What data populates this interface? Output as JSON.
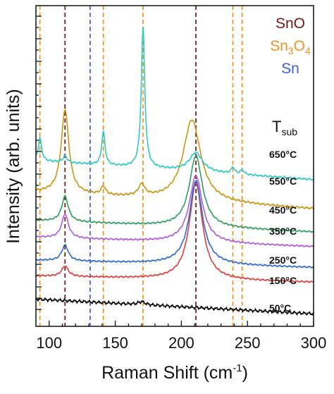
{
  "chart_data": {
    "type": "line",
    "xlabel": "Raman Shift (cm",
    "xlabel_sup": "-1",
    "xlabel_close": ")",
    "ylabel": "Intensity (arb. units)",
    "xlim": [
      90,
      300
    ],
    "xticks": [
      100,
      150,
      200,
      250,
      300
    ],
    "y_ticks_labeled": false,
    "legend_placement": "top-right",
    "legend": [
      {
        "id": "sno",
        "parts": [
          {
            "t": "SnO",
            "sub": false
          }
        ],
        "color": "#7a1414"
      },
      {
        "id": "sn3o4",
        "parts": [
          {
            "t": "Sn",
            "sub": false
          },
          {
            "t": "3",
            "sub": true
          },
          {
            "t": "O",
            "sub": false
          },
          {
            "t": "4",
            "sub": true
          }
        ],
        "color": "#f0921e"
      },
      {
        "id": "sn",
        "parts": [
          {
            "t": "Sn",
            "sub": false
          }
        ],
        "color": "#3b5fe0"
      }
    ],
    "tsub_label": {
      "main": "T",
      "sub": "sub"
    },
    "reference_lines": [
      {
        "x": 93,
        "phase": "sn3o4",
        "color": "#f0921e"
      },
      {
        "x": 112,
        "phase": "sno",
        "color": "#7a1414"
      },
      {
        "x": 131,
        "phase": "sn",
        "color": "#3b5fe0"
      },
      {
        "x": 141,
        "phase": "sn3o4",
        "color": "#f0921e"
      },
      {
        "x": 171,
        "phase": "sn3o4",
        "color": "#f0921e"
      },
      {
        "x": 211,
        "phase": "sno",
        "color": "#7a1414"
      },
      {
        "x": 239,
        "phase": "sn3o4",
        "color": "#f0921e"
      },
      {
        "x": 246,
        "phase": "sn3o4",
        "color": "#f0921e"
      }
    ],
    "series": [
      {
        "name": "50°C",
        "color": "#000000",
        "baseline": 0.7,
        "slope": -0.7,
        "noise": 0.08,
        "peaks": [
          {
            "c": 170,
            "h": 0.15,
            "w": 3
          }
        ]
      },
      {
        "name": "150°C",
        "color": "#e03c3c",
        "baseline": 1.8,
        "slope": -0.3,
        "noise": 0.04,
        "peaks": [
          {
            "c": 112,
            "h": 0.5,
            "w": 3
          },
          {
            "c": 211,
            "h": 4.6,
            "w": 6
          }
        ]
      },
      {
        "name": "250°C",
        "color": "#2f6ad0",
        "baseline": 2.55,
        "slope": -0.35,
        "noise": 0.04,
        "peaks": [
          {
            "c": 112,
            "h": 0.75,
            "w": 3
          },
          {
            "c": 211,
            "h": 4.0,
            "w": 6
          }
        ]
      },
      {
        "name": "350°C",
        "color": "#b05cd8",
        "baseline": 3.65,
        "slope": -0.45,
        "noise": 0.04,
        "peaks": [
          {
            "c": 112,
            "h": 1.15,
            "w": 3
          },
          {
            "c": 211,
            "h": 3.2,
            "w": 6
          }
        ]
      },
      {
        "name": "450°C",
        "color": "#2e9e5e",
        "baseline": 4.45,
        "slope": -0.55,
        "noise": 0.04,
        "peaks": [
          {
            "c": 112,
            "h": 1.2,
            "w": 3
          },
          {
            "c": 211,
            "h": 3.4,
            "w": 6
          }
        ]
      },
      {
        "name": "550°C",
        "color": "#c99612",
        "baseline": 5.8,
        "slope": -0.8,
        "noise": 0.05,
        "peaks": [
          {
            "c": 112,
            "h": 4.0,
            "w": 3.5
          },
          {
            "c": 141,
            "h": 0.4,
            "w": 2
          },
          {
            "c": 170,
            "h": 0.55,
            "w": 3
          },
          {
            "c": 208,
            "h": 3.9,
            "w": 8
          }
        ]
      },
      {
        "name": "650°C",
        "color": "#2ec9c9",
        "baseline": 7.3,
        "slope": -0.9,
        "noise": 0.05,
        "peaks": [
          {
            "c": 93,
            "h": 1.1,
            "w": 1.5
          },
          {
            "c": 112,
            "h": 0.3,
            "w": 2
          },
          {
            "c": 141,
            "h": 1.6,
            "w": 1.5
          },
          {
            "c": 171,
            "h": 6.7,
            "w": 1.6
          },
          {
            "c": 211,
            "h": 0.9,
            "w": 6
          },
          {
            "c": 239,
            "h": 0.3,
            "w": 1.5
          },
          {
            "c": 246,
            "h": 0.22,
            "w": 1.5
          }
        ]
      }
    ]
  }
}
